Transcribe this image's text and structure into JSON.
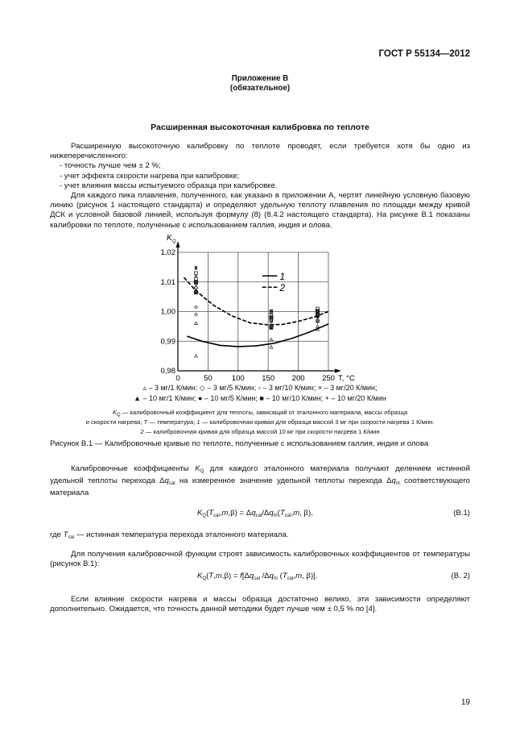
{
  "header": {
    "doc_id": "ГОСТ Р 55134—2012"
  },
  "annex": {
    "title": "Приложение В",
    "status": "(обязательное)"
  },
  "section_title": "Расширенная высокоточная калибровка по теплоте",
  "intro": {
    "p1": "Расширенную высокоточную калибровку по теплоте проводят, если требуется хотя бы одно из нижеперечисленного:",
    "items": [
      "- точность лучше чем ± 2 %;",
      "- учет эффекта скорости нагрева при  калибровке;",
      "- учет влияния массы испытуемого образца при калибровке."
    ],
    "p2": "Для каждого пика плавления, полученного, как указано в  приложении А, чертят линейную условную базовую линию (рисунок 1 настоящего стандарта) и определяют удельную теплоту плавления по площади между кривой ДСК и условной базовой линией, используя формулу (8) (8.4.2 настоящего стандарта). На рисунке В.1 показаны калибровки по теплоте, полученные с использованием галлия, индия и олова."
  },
  "chart_data": {
    "type": "scatter",
    "ylabel": "K",
    "ylabel_sub": "Q",
    "xlabel": "T, °C",
    "xlim": [
      0,
      250
    ],
    "ylim": [
      0.98,
      1.02
    ],
    "x_ticks": [
      "0",
      "50",
      "100",
      "150",
      "200",
      "250"
    ],
    "y_ticks": [
      "0,98",
      "0,99",
      "1,00",
      "1,01",
      "1,02"
    ],
    "grid": true,
    "curve_legend": [
      {
        "name": "1",
        "style": "solid"
      },
      {
        "name": "2",
        "style": "dashed"
      }
    ],
    "curves": [
      {
        "name": "1",
        "style": "solid",
        "points": [
          [
            15,
            0.9917
          ],
          [
            40,
            0.99
          ],
          [
            70,
            0.9886
          ],
          [
            100,
            0.9882
          ],
          [
            130,
            0.9884
          ],
          [
            160,
            0.9893
          ],
          [
            190,
            0.991
          ],
          [
            220,
            0.9932
          ],
          [
            250,
            0.9958
          ]
        ]
      },
      {
        "name": "2",
        "style": "dashed",
        "points": [
          [
            10,
            1.0115
          ],
          [
            30,
            1.007
          ],
          [
            60,
            1.002
          ],
          [
            90,
            0.9985
          ],
          [
            120,
            0.9962
          ],
          [
            150,
            0.9955
          ],
          [
            175,
            0.9957
          ],
          [
            200,
            0.9967
          ],
          [
            225,
            0.9981
          ],
          [
            250,
            1.0
          ]
        ]
      }
    ],
    "series": [
      {
        "marker": "tri-open",
        "points": [
          [
            30,
            0.996
          ],
          [
            30,
            0.985
          ],
          [
            155,
            0.9905
          ],
          [
            155,
            0.988
          ],
          [
            232,
            0.994
          ],
          [
            232,
            0.995
          ]
        ]
      },
      {
        "marker": "diamond-open",
        "points": [
          [
            30,
            1.0015
          ],
          [
            30,
            0.999
          ],
          [
            155,
            0.9965
          ],
          [
            232,
            0.9965
          ]
        ]
      },
      {
        "marker": "square-open",
        "points": [
          [
            30,
            1.013
          ],
          [
            30,
            1.011
          ],
          [
            155,
            0.999
          ],
          [
            155,
            1.0
          ],
          [
            232,
            1.001
          ]
        ]
      },
      {
        "marker": "cross",
        "points": [
          [
            30,
            1.015
          ],
          [
            30,
            1.0145
          ],
          [
            155,
            1.0003
          ],
          [
            232,
            1.0005
          ]
        ]
      },
      {
        "marker": "tri-filled",
        "points": [
          [
            30,
            1.007
          ],
          [
            155,
            0.9945
          ],
          [
            232,
            0.9985
          ]
        ]
      },
      {
        "marker": "circle",
        "points": [
          [
            30,
            1.008
          ],
          [
            30,
            1.0095
          ],
          [
            155,
            0.997
          ],
          [
            232,
            0.997
          ]
        ]
      },
      {
        "marker": "square-filled",
        "points": [
          [
            30,
            1.01
          ],
          [
            30,
            1.0065
          ],
          [
            155,
            0.998
          ],
          [
            155,
            0.995
          ],
          [
            232,
            1.0
          ],
          [
            232,
            0.999
          ]
        ]
      },
      {
        "marker": "plus",
        "points": [
          [
            30,
            1.012
          ],
          [
            155,
            0.9995
          ],
          [
            232,
            0.998
          ]
        ]
      }
    ],
    "legend_row1": "▵ – 3 мг/1 К/мин;  ◇ – 3 мг/5 К/мин;  ▫ – 3 мг/10 К/мин;  × – 3 мг/20 К/мин;",
    "legend_row2": "▲ – 10 мг/1 К/мин; ● – 10 мг/5 К/мин; ■ – 10 мг/10 К/мин; + – 10 мг/20 К/мин"
  },
  "figure": {
    "note1": [
      {
        "i": "K"
      },
      {
        "s": "Q"
      },
      " — калибровочный коэффициент для теплоты, зависящий от эталонного материала, массы образца"
    ],
    "note2": [
      "и скорости нагрева; ",
      {
        "i": "T"
      },
      " — температура; ",
      {
        "i": "1"
      },
      " — калибровочная кривая для образца массой 3 мг при скорости нагрева 1 К/мин."
    ],
    "note3": [
      {
        "i": "2"
      },
      " — калибровочная кривая для образца массой 10 мг при скорости нагрева 1 К/мин"
    ],
    "caption": "Рисунок В.1 — Калибровочные кривые по теплоте, полученные с использованием галлия, индия и олова"
  },
  "body": {
    "p3": [
      "Калибровочные коэффициенты ",
      {
        "i": "K"
      },
      {
        "s": "Q"
      },
      " для каждого  эталонного  материала получают делением истинной удельной теплоты перехода Δ",
      {
        "i": "q"
      },
      {
        "s": "cal"
      },
      " на измеренное значение удельной теплоты перехода Δ",
      {
        "i": "q"
      },
      {
        "s": "m"
      },
      " соответствующего материала"
    ],
    "eq1": [
      {
        "i": "K"
      },
      {
        "s": "Q"
      },
      "(",
      {
        "i": "T"
      },
      {
        "s": "cal"
      },
      ",",
      {
        "i": "m"
      },
      ",β) = Δ",
      {
        "i": "q"
      },
      {
        "s": "cal"
      },
      "/Δ",
      {
        "i": "q"
      },
      {
        "s": "m"
      },
      "(",
      {
        "i": "T"
      },
      {
        "s": "cal"
      },
      ",",
      {
        "i": "m"
      },
      ", β),"
    ],
    "eq1_no": "(В.1)",
    "where": [
      "где  ",
      {
        "i": "T"
      },
      {
        "s": "cal"
      },
      " — истинная температура перехода эталонного материала."
    ],
    "p4": "Для получения калибровочной функции строят зависимость калибровочных коэффициентов от температуры (рисунок В.1):",
    "eq2": [
      {
        "i": "K"
      },
      {
        "s": "Q"
      },
      "(",
      {
        "i": "T"
      },
      ",",
      {
        "i": "m"
      },
      ",β) = ",
      {
        "i": "f"
      },
      "[Δ",
      {
        "i": "q"
      },
      {
        "s": "cal"
      },
      " /Δ",
      {
        "i": "q"
      },
      {
        "s": "m"
      },
      " (",
      {
        "i": "T"
      },
      {
        "s": "cal"
      },
      ",",
      {
        "i": "m"
      },
      ", β)]."
    ],
    "eq2_no": "(В. 2)",
    "p5": "Если влияние скорости нагрева и массы образца достаточно велико, эти зависимости определяют дополнительно. Ожидается, что точность данной методики будет лучше чем ± 0,5 % по [4]."
  },
  "page_number": "19"
}
